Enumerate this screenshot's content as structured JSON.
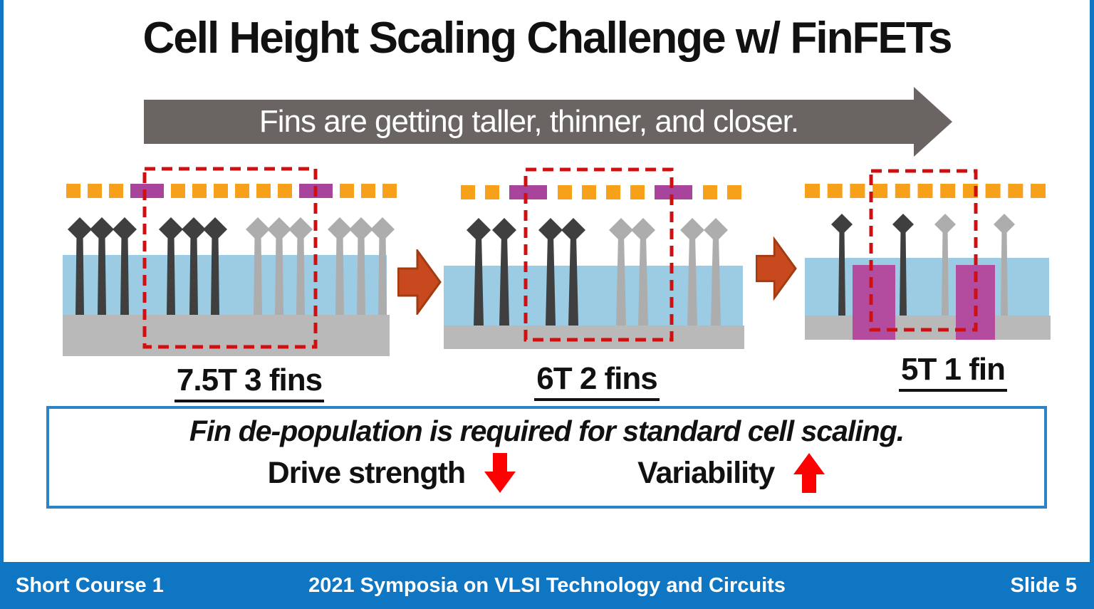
{
  "title": "Cell Height Scaling Challenge w/ FinFETs",
  "banner": {
    "text": "Fins are getting taller, thinner, and closer."
  },
  "palette": {
    "accent_blue": "#0E76C3",
    "box_border_blue": "#2C84C6",
    "banner_gray": "#6A6563",
    "gate_orange": "#F7A11B",
    "gate_purple": "#A8449B",
    "fin_dark": "#3F3F3F",
    "fin_light": "#ADADAD",
    "oxide_blue": "#9CCCE4",
    "substrate_gray": "#B9B9B9",
    "rail_purple": "#B34B9E",
    "cell_outline_red": "#D01010",
    "transition_arrow_orange": "#C8491E",
    "transition_arrow_edge": "#A33B10",
    "indicator_red": "#FF0000",
    "text_black": "#111111"
  },
  "diagrams": [
    {
      "label": "7.5T 3 fins",
      "fins_per_group": 3,
      "groups": [
        "dark",
        "dark",
        "light",
        "light"
      ],
      "dash_pattern": [
        "o",
        "o",
        "o",
        "p",
        "o",
        "o",
        "o",
        "o",
        "o",
        "o",
        "p",
        "o",
        "o",
        "o"
      ],
      "power_rails": false
    },
    {
      "label": "6T 2 fins",
      "fins_per_group": 2,
      "groups": [
        "dark",
        "dark",
        "light",
        "light"
      ],
      "dash_pattern": [
        "o",
        "o",
        "p",
        "o",
        "o",
        "o",
        "o",
        "p",
        "o",
        "o"
      ],
      "power_rails": false
    },
    {
      "label": "5T 1 fin",
      "fins_per_group": 1,
      "groups": [
        "dark",
        "dark",
        "light",
        "light"
      ],
      "dash_pattern": [
        "o",
        "o",
        "o",
        "o",
        "o",
        "o",
        "o",
        "o",
        "o",
        "o",
        "o"
      ],
      "power_rails": true
    }
  ],
  "callout": {
    "headline": "Fin de-population is required for standard cell scaling.",
    "items": [
      {
        "label": "Drive strength",
        "direction": "down"
      },
      {
        "label": "Variability",
        "direction": "up"
      }
    ]
  },
  "footer": {
    "left": "Short Course 1",
    "center": "2021 Symposia on VLSI Technology and Circuits",
    "right": "Slide 5"
  }
}
